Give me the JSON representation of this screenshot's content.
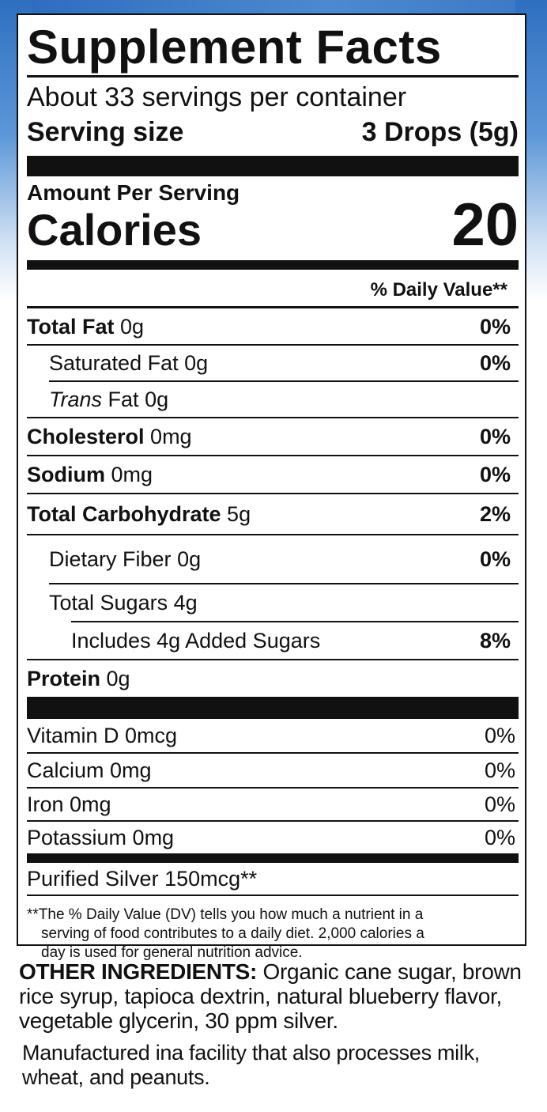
{
  "label": {
    "title": "Supplement Facts",
    "servings_per_container": "About 33 servings per container",
    "serving_size_label": "Serving size",
    "serving_size_value": "3 Drops (5g)",
    "amount_per_serving": "Amount Per Serving",
    "calories_label": "Calories",
    "calories_value": "20",
    "daily_value_header": "% Daily Value**",
    "nutrients": [
      {
        "name": "Total Fat",
        "amount": "0g",
        "dv": "0%"
      },
      {
        "name": "Saturated Fat",
        "amount": "0g",
        "dv": "0%"
      },
      {
        "name": "Trans",
        "name_suffix": "Fat",
        "amount": "0g",
        "dv": ""
      },
      {
        "name": "Cholesterol",
        "amount": "0mg",
        "dv": "0%"
      },
      {
        "name": "Sodium",
        "amount": "0mg",
        "dv": "0%"
      },
      {
        "name": "Total Carbohydrate",
        "amount": "5g",
        "dv": "2%"
      },
      {
        "name": "Dietary Fiber",
        "amount": "0g",
        "dv": "0%"
      },
      {
        "name": "Total Sugars",
        "amount": "4g",
        "dv": ""
      },
      {
        "name": "Includes 4g Added Sugars",
        "amount": "",
        "dv": "8%"
      },
      {
        "name": "Protein",
        "amount": "0g",
        "dv": ""
      }
    ],
    "vitamins": [
      {
        "text": "Vitamin D 0mcg",
        "dv": "0%"
      },
      {
        "text": "Calcium 0mg",
        "dv": "0%"
      },
      {
        "text": "Iron 0mg",
        "dv": "0%"
      },
      {
        "text": "Potassium 0mg",
        "dv": "0%"
      }
    ],
    "other_nutrient": "Purified Silver 150mcg**",
    "footnote_line1": "**The % Daily Value (DV) tells you how much a nutrient in a",
    "footnote_line2": "serving of food contributes to a daily diet. 2,000 calories a",
    "footnote_line3": "day is used for general nutrition advice."
  },
  "ingredients": {
    "label": "OTHER INGREDIENTS:",
    "text": " Organic cane sugar, brown rice syrup, tapioca dextrin, natural blueberry flavor, vegetable glycerin, 30 ppm silver."
  },
  "allergen_note": "Manufactured ina facility that also processes milk, wheat, and peanuts.",
  "colors": {
    "background_accent": "#3a78c7",
    "ink": "#111111"
  }
}
